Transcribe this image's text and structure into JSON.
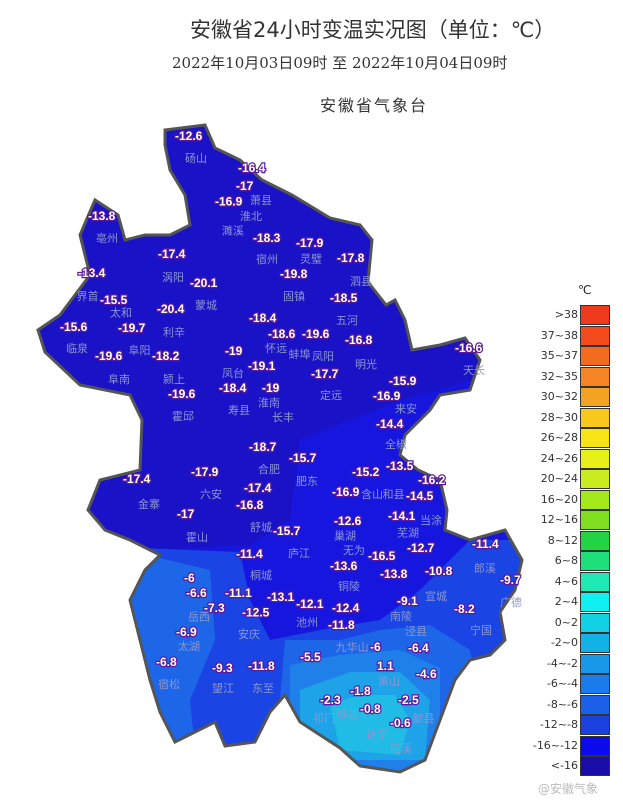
{
  "header": {
    "title": "安徽省24小时变温实况图（单位：℃）",
    "period": "2022年10月03日09时  至  2022年10月04日09时",
    "issuer": "安徽省气象台"
  },
  "legend": {
    "unit": "℃",
    "items": [
      {
        "label": ">38",
        "color": "#f03a1e"
      },
      {
        "label": "37~38",
        "color": "#f44a1c"
      },
      {
        "label": "35~37",
        "color": "#f46a1e"
      },
      {
        "label": "32~35",
        "color": "#f48424"
      },
      {
        "label": "30~32",
        "color": "#f4a222"
      },
      {
        "label": "28~30",
        "color": "#f8c81a"
      },
      {
        "label": "26~28",
        "color": "#f8e414"
      },
      {
        "label": "24~26",
        "color": "#e8f01a"
      },
      {
        "label": "20~24",
        "color": "#c8ec1e"
      },
      {
        "label": "16~20",
        "color": "#a4e81e"
      },
      {
        "label": "12~16",
        "color": "#80e020"
      },
      {
        "label": "8~12",
        "color": "#22d444"
      },
      {
        "label": "6~8",
        "color": "#1ee07a"
      },
      {
        "label": "4~6",
        "color": "#20e8b4"
      },
      {
        "label": "2~4",
        "color": "#10f0f0"
      },
      {
        "label": "0~2",
        "color": "#12d0e6"
      },
      {
        "label": "-2~0",
        "color": "#14b0e8"
      },
      {
        "label": "-4~-2",
        "color": "#1898e8"
      },
      {
        "label": "-6~-4",
        "color": "#1a7ceb"
      },
      {
        "label": "-8~-6",
        "color": "#1a60e8"
      },
      {
        "label": "-12~-8",
        "color": "#1a40e0"
      },
      {
        "label": "-16~-12",
        "color": "#0a0aec"
      },
      {
        "label": "<-16",
        "color": "#1a0ca8"
      }
    ]
  },
  "stations": [
    "-12.6",
    "-16.4",
    "-17",
    "-16.9",
    "-13.8",
    "-18.3",
    "-17.9",
    "-17.8",
    "-17.4",
    "-13.4",
    "-20.1",
    "-19.8",
    "-15.5",
    "-20.4",
    "-18.5",
    "-18.4",
    "-15.6",
    "-19.7",
    "-18.6",
    "-19.6",
    "-16.8",
    "-16.6",
    "-19.6",
    "-18.2",
    "-19",
    "-19.1",
    "-17.7",
    "-15.9",
    "-19.6",
    "-18.4",
    "-19",
    "-16.9",
    "-14.4",
    "-18.7",
    "-15.7",
    "-17.9",
    "-17.4",
    "-15.2",
    "-13.5",
    "-16.2",
    "-17.4",
    "-16.9",
    "-14.5",
    "-16.8",
    "-17",
    "-14.1",
    "-12.6",
    "-15.7",
    "-12.7",
    "-11.4",
    "-11.4",
    "-16.5",
    "-13.6",
    "-10.8",
    "-9.7",
    "-13.8",
    "-6",
    "-6.6",
    "-11.1",
    "-13.1",
    "-7.3",
    "-12.5",
    "-12.1",
    "-9.1",
    "-8.2",
    "-12.4",
    "-11.8",
    "-6.9",
    "-5.5",
    "-6",
    "-6.4",
    "1.1",
    "-4.6",
    "-6.8",
    "-9.3",
    "-11.8",
    "-1.8",
    "-2.3",
    "-2.5",
    "-0.8",
    "-0.6"
  ],
  "cities": [
    "砀山",
    "萧县",
    "淮北",
    "濉溪",
    "亳州",
    "涡阳",
    "宿州",
    "灵璧",
    "泗县",
    "界首",
    "蒙城",
    "固镇",
    "太和",
    "利辛",
    "五河",
    "临泉",
    "阜阳",
    "怀远",
    "蚌埠",
    "凤阳",
    "明光",
    "天长",
    "阜南",
    "颍上",
    "凤台",
    "淮南",
    "定远",
    "来安",
    "霍邱",
    "寿县",
    "长丰",
    "全椒",
    "合肥",
    "肥东",
    "六安",
    "金寨",
    "含山",
    "和县",
    "舒城",
    "霍山",
    "巢湖",
    "当涂",
    "无为",
    "芜湖",
    "庐江",
    "桐城",
    "郎溪",
    "宣城",
    "铜陵",
    "广德",
    "南陵",
    "岳西",
    "安庆",
    "池州",
    "泾县",
    "宁国",
    "太湖",
    "九华山",
    "宿松",
    "望江",
    "东至",
    "黄山",
    "黟县",
    "祁门",
    "歙县",
    "休宁",
    "屯溪"
  ],
  "watermark": "@安徽气象"
}
